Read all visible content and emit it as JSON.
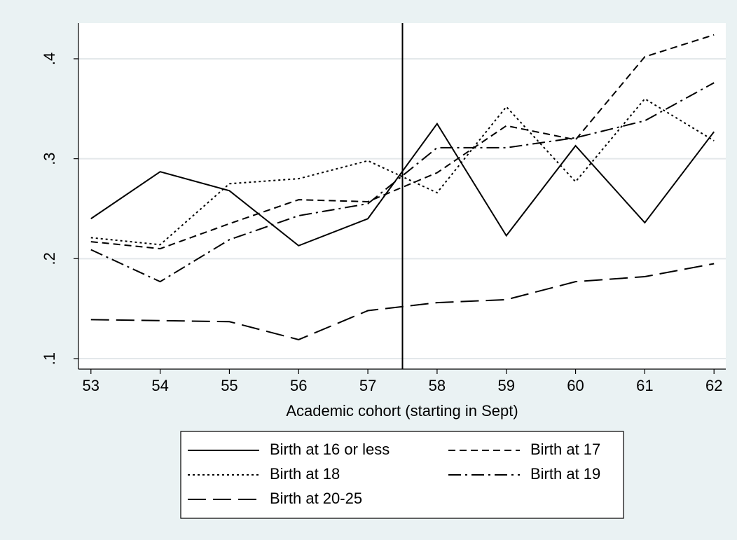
{
  "chart_data": {
    "type": "line",
    "x_label": "Academic cohort (starting in Sept)",
    "x": [
      53,
      54,
      55,
      56,
      57,
      58,
      59,
      60,
      61,
      62
    ],
    "xlim": [
      52.82,
      62.17
    ],
    "xticks": [
      53,
      54,
      55,
      56,
      57,
      58,
      59,
      60,
      61,
      62
    ],
    "ylim": [
      0.0895,
      0.4357
    ],
    "yticks": [
      {
        "value": 0.1,
        "label": ".1"
      },
      {
        "value": 0.2,
        "label": ".2"
      },
      {
        "value": 0.3,
        "label": ".3"
      },
      {
        "value": 0.4,
        "label": ".4"
      }
    ],
    "grid": true,
    "xline": 57.5,
    "series": [
      {
        "name": "Birth at 16 or less",
        "color": "#000000",
        "values": [
          0.24,
          0.287,
          0.268,
          0.213,
          0.24,
          0.335,
          0.223,
          0.313,
          0.236,
          0.327
        ]
      },
      {
        "name": "Birth at 17",
        "color": "#000000",
        "values": [
          0.217,
          0.21,
          0.235,
          0.259,
          0.257,
          0.286,
          0.333,
          0.319,
          0.402,
          0.424
        ]
      },
      {
        "name": "Birth at 18",
        "color": "#000000",
        "values": [
          0.221,
          0.214,
          0.275,
          0.28,
          0.298,
          0.266,
          0.352,
          0.277,
          0.36,
          0.318
        ]
      },
      {
        "name": "Birth at 19",
        "color": "#000000",
        "values": [
          0.209,
          0.177,
          0.219,
          0.243,
          0.255,
          0.311,
          0.311,
          0.321,
          0.338,
          0.376
        ]
      },
      {
        "name": "Birth at 20-25",
        "color": "#000000",
        "values": [
          0.139,
          0.138,
          0.137,
          0.119,
          0.148,
          0.156,
          0.159,
          0.177,
          0.182,
          0.195
        ]
      }
    ]
  }
}
